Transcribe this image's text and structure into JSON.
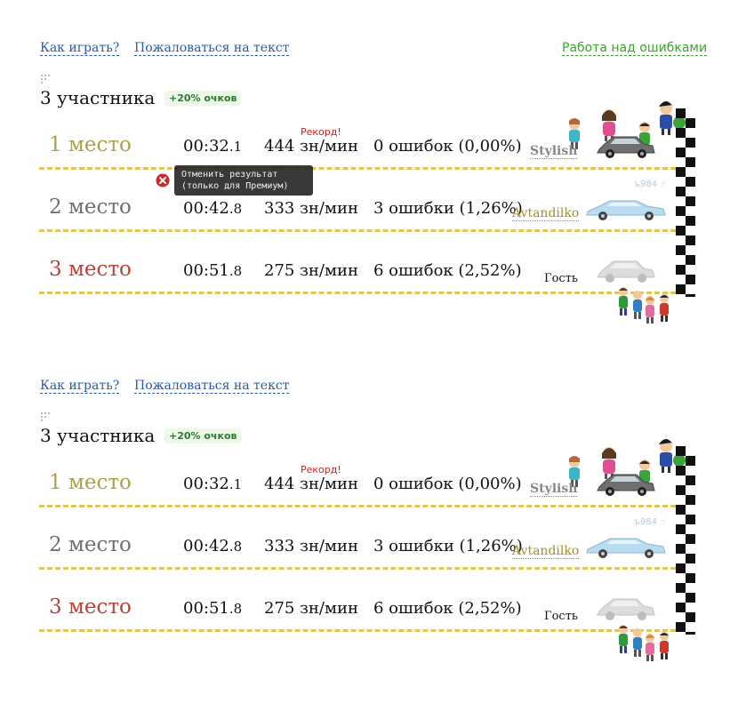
{
  "blocks": [
    {
      "links": {
        "how_to_play": "Как играть?",
        "complain": "Пожаловаться на текст",
        "work_on_errors": "Работа над ошибками"
      },
      "participants": "3 участника",
      "bonus": "+20% очков",
      "tooltip": {
        "line1": "Отменить результат",
        "line2": "(только для Премиум)"
      },
      "rows": [
        {
          "place": "1 место",
          "time": "00:32",
          "ms": ".1",
          "speed": "444 зн/мин",
          "errors": "0 ошибок (0,00%)",
          "record": "Рекорд!",
          "name": "Stylish",
          "car_color": "#6f6f6f"
        },
        {
          "place": "2 место",
          "time": "00:42",
          "ms": ".8",
          "speed": "333 зн/мин",
          "errors": "3 ошибки (1,26%)",
          "name": "Avtandilko",
          "sub": "ъ984 ☝",
          "car_color": "#b9ddf0"
        },
        {
          "place": "3 место",
          "time": "00:51",
          "ms": ".8",
          "speed": "275 зн/мин",
          "errors": "6 ошибок (2,52%)",
          "name": "Гость",
          "car_color": "#dcdcdc"
        }
      ]
    },
    {
      "links": {
        "how_to_play": "Как играть?",
        "complain": "Пожаловаться на текст"
      },
      "participants": "3 участника",
      "bonus": "+20% очков",
      "rows": [
        {
          "place": "1 место",
          "time": "00:32",
          "ms": ".1",
          "speed": "444 зн/мин",
          "errors": "0 ошибок (0,00%)",
          "record": "Рекорд!",
          "name": "Stylish",
          "car_color": "#6f6f6f"
        },
        {
          "place": "2 место",
          "time": "00:42",
          "ms": ".8",
          "speed": "333 зн/мин",
          "errors": "3 ошибки (1,26%)",
          "name": "Avtandilko",
          "sub": "ъ984 ☝",
          "car_color": "#b9ddf0"
        },
        {
          "place": "3 место",
          "time": "00:51",
          "ms": ".8",
          "speed": "275 зн/мин",
          "errors": "6 ошибок (2,52%)",
          "name": "Гость",
          "car_color": "#dcdcdc"
        }
      ]
    }
  ],
  "icons": {
    "cancel": "cancel-result-icon",
    "car": "car-icon",
    "finish": "finish-flag",
    "spectators": "spectators-icon"
  },
  "colors": {
    "accent_link": "#2a5aa6",
    "errors_link": "#3aa52c",
    "record": "#cc1f1f",
    "track_dash": "#e2c653"
  }
}
